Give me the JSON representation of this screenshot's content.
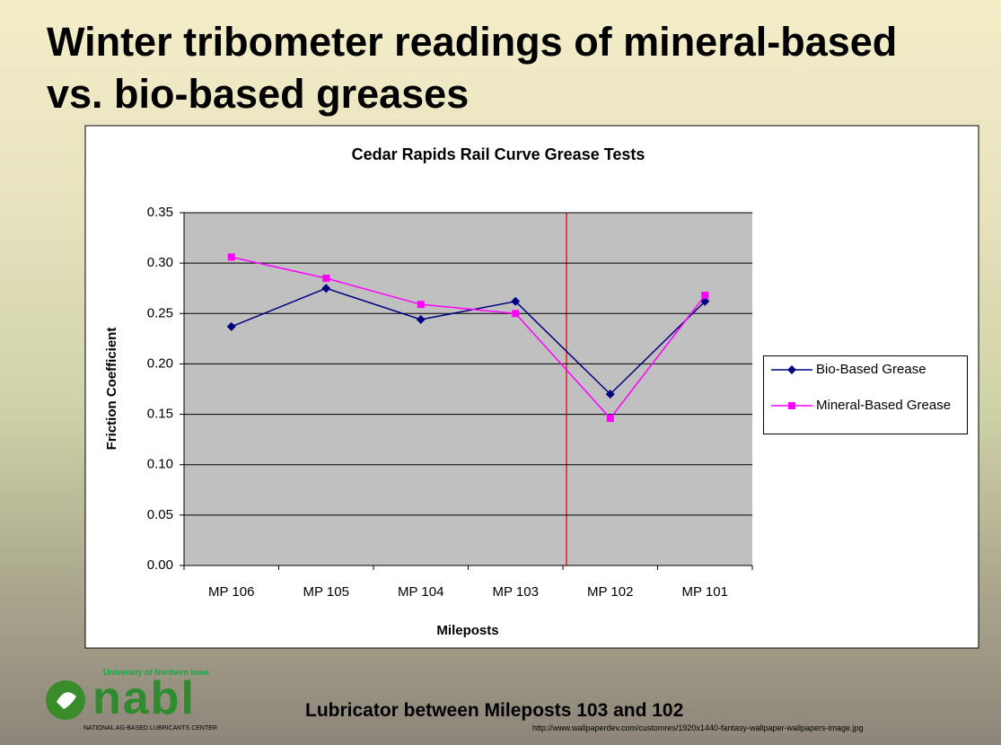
{
  "slide_title": "Winter tribometer readings of mineral-based vs. bio-based greases",
  "caption": "Lubricator between Mileposts 103 and 102",
  "source_url": "http://www.wallpaperdev.com/customres/1920x1440-fantasy-wallpaper-wallpapers-image.jpg",
  "logo": {
    "university": "University of Northern Iowa",
    "name": "nabl",
    "tagline": "NATIONAL AG-BASED LUBRICANTS CENTER"
  },
  "chart_data": {
    "type": "line",
    "title": "Cedar Rapids Rail Curve Grease Tests",
    "x_label": "Mileposts",
    "y_label": "Friction Coefficient",
    "categories": [
      "MP 106",
      "MP 105",
      "MP 104",
      "MP 103",
      "MP 102",
      "MP 101"
    ],
    "series": [
      {
        "name": "Bio-Based Grease",
        "color": "#000080",
        "marker": "diamond",
        "values": [
          0.237,
          0.275,
          0.244,
          0.262,
          0.17,
          0.262
        ]
      },
      {
        "name": "Mineral-Based Grease",
        "color": "#ff00ff",
        "marker": "square",
        "values": [
          0.306,
          0.285,
          0.259,
          0.25,
          0.146,
          0.268
        ]
      }
    ],
    "ylim": [
      0,
      0.35
    ],
    "yticks": [
      {
        "value": 0,
        "label": "0.00"
      },
      {
        "value": 0.05,
        "label": "0.05"
      },
      {
        "value": 0.1,
        "label": "0.10"
      },
      {
        "value": 0.15,
        "label": "0.15"
      },
      {
        "value": 0.2,
        "label": "0.20"
      },
      {
        "value": 0.25,
        "label": "0.25"
      },
      {
        "value": 0.3,
        "label": "0.30"
      },
      {
        "value": 0.35,
        "label": "0.35"
      }
    ],
    "grid": true,
    "legend": "right"
  }
}
